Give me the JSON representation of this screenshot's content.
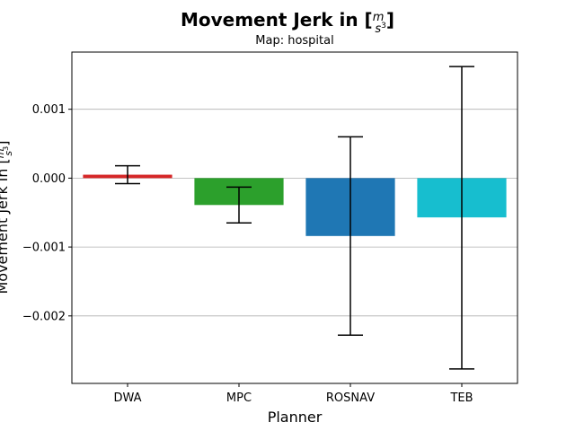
{
  "chart_data": {
    "type": "bar",
    "title_main": "Movement Jerk in [",
    "title_unit_num": "m",
    "title_unit_den": "s",
    "title_unit_exp": "3",
    "title_close": "]",
    "subtitle": "Map: hospital",
    "xlabel": "Planner",
    "ylabel": "Movement Jerk in [",
    "ylabel_unit_num": "m",
    "ylabel_unit_den": "s",
    "ylabel_unit_exp": "3",
    "ylabel_close": "]",
    "categories": [
      "DWA",
      "MPC",
      "ROSNAV",
      "TEB"
    ],
    "values": [
      5e-05,
      -0.00039,
      -0.00084,
      -0.00057
    ],
    "error_low": [
      -8e-05,
      -0.00065,
      -0.00228,
      -0.00277
    ],
    "error_high": [
      0.00018,
      -0.00013,
      0.0006,
      0.00162
    ],
    "colors": [
      "#d62728",
      "#2ca02c",
      "#1f77b4",
      "#17becf"
    ],
    "ylim": [
      -0.00298,
      0.00183
    ],
    "yticks": [
      0.001,
      0.0,
      -0.001,
      -0.002
    ],
    "ytick_labels": [
      "0.001",
      "0.000",
      "−0.001",
      "−0.002"
    ],
    "grid": "horizontal"
  }
}
